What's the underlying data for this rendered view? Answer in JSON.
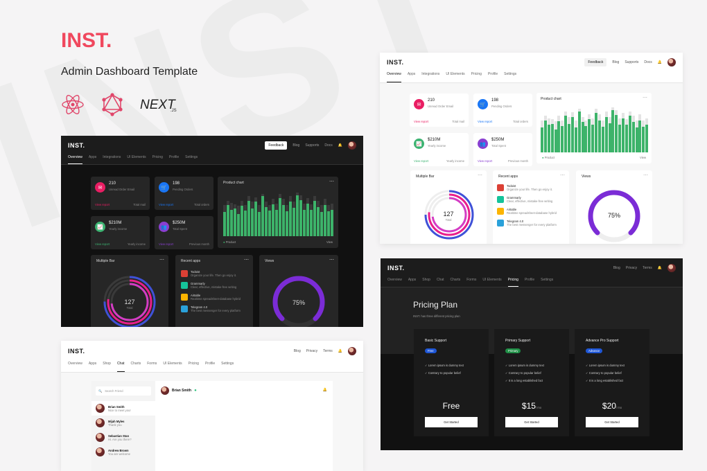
{
  "brand": "INST.",
  "subtitle": "Admin Dashboard Template",
  "tech": [
    "react-icon",
    "graphql-icon",
    "next-js-logo"
  ],
  "dash": {
    "logo": "INST.",
    "feedback": "Feedback",
    "links": [
      "Blog",
      "Supports",
      "Docs"
    ],
    "badge": "11",
    "tabs": [
      "Overview",
      "Apps",
      "Integrations",
      "UI Elements",
      "Pricing",
      "Profile",
      "Settings"
    ],
    "stats": [
      {
        "value": "210",
        "label": "Unread Order Email",
        "link": "View report",
        "right": "Total mail",
        "color": "#e91e63",
        "icon": "✉"
      },
      {
        "value": "198",
        "label": "Pending Orders",
        "link": "View report",
        "right": "Total orders",
        "color": "#1976f5",
        "icon": "🛒"
      },
      {
        "value": "$210M",
        "label": "Yearly income",
        "link": "View report",
        "right": "Yearly income",
        "color": "#3cb371",
        "icon": "📈"
      },
      {
        "value": "$250M",
        "label": "Total Spent",
        "link": "View report",
        "right": "Previous month",
        "color": "#8a3fd1",
        "icon": "👥"
      }
    ],
    "chart_title": "Product chart",
    "chart_legend": "Product",
    "chart_view": "View",
    "multi_title": "Multiple Bar",
    "multi_value": "127",
    "multi_label": "Total",
    "recent_title": "Recent apps",
    "apps": [
      {
        "name": "Todoist",
        "desc": "Organize your life. Then go enjoy it.",
        "color": "#db4035"
      },
      {
        "name": "Grammarly",
        "desc": "Clear, effective, mistake-free writing",
        "color": "#15c39a"
      },
      {
        "name": "Airtable",
        "desc": "Realtime spreadsheet-database hybrid",
        "color": "#fcb400"
      },
      {
        "name": "Telegram 4.0",
        "desc": "The best messenger for every platform",
        "color": "#2aa1da"
      }
    ],
    "views_title": "Views",
    "views_value": "75%"
  },
  "chat": {
    "logo": "INST.",
    "links": [
      "Blog",
      "Privacy",
      "Terms"
    ],
    "badge": "11",
    "tabs": [
      "Overview",
      "Apps",
      "Shop",
      "Chat",
      "Charts",
      "Forms",
      "UI Elements",
      "Pricing",
      "Profile",
      "Settings"
    ],
    "search_placeholder": "Search Friend",
    "header_name": "Brian Smith",
    "contacts": [
      {
        "name": "Brian Smith",
        "msg": "Nice to meet you!"
      },
      {
        "name": "Mijah Myles",
        "msg": "Thank you"
      },
      {
        "name": "Sebastian Stan",
        "msg": "Hi. Are you there?"
      },
      {
        "name": "Andrew Brown",
        "msg": "You are welcome"
      }
    ]
  },
  "pricing": {
    "logo": "INST.",
    "links": [
      "Blog",
      "Privacy",
      "Terms"
    ],
    "badge": "11",
    "tabs": [
      "Overview",
      "Apps",
      "Shop",
      "Chat",
      "Charts",
      "Forms",
      "UI Elements",
      "Pricing",
      "Profile",
      "Settings"
    ],
    "title": "Pricing Plan",
    "subtitle": "INST. has three different pricing plan",
    "plans": [
      {
        "name": "Basic Support",
        "tag": "Free",
        "tag_color": "#1e56d6",
        "features": [
          "Lorem ipsum is dummy text",
          "Contrary to popular belief"
        ],
        "price": "Free",
        "per": "",
        "cta": "Get Started"
      },
      {
        "name": "Primary Support",
        "tag": "Primary",
        "tag_color": "#1f8f46",
        "features": [
          "Lorem ipsum is dummy text",
          "Contrary to popular belief",
          "It is a long established fact"
        ],
        "price": "$15",
        "per": "/ mo",
        "cta": "Get Started"
      },
      {
        "name": "Advance Pro Support",
        "tag": "Advance",
        "tag_color": "#1e56d6",
        "features": [
          "Lorem ipsum is dummy text",
          "Contrary to popular belief",
          "It is a long established fact"
        ],
        "price": "$20",
        "per": "/ mo",
        "cta": "Get Started"
      }
    ]
  },
  "chart_data": {
    "type": "bar",
    "title": "Product chart",
    "series": [
      {
        "name": "Product",
        "values": [
          0.55,
          0.7,
          0.6,
          0.62,
          0.5,
          0.68,
          0.58,
          0.8,
          0.62,
          0.78,
          0.55,
          0.9,
          0.66,
          0.58,
          0.72,
          0.6,
          0.86,
          0.7,
          0.56,
          0.78,
          0.64,
          0.92,
          0.82,
          0.6,
          0.74,
          0.6,
          0.8,
          0.66,
          0.54,
          0.7,
          0.56,
          0.6
        ]
      }
    ],
    "background_values": [
      0.7,
      0.8,
      0.75,
      0.72,
      0.68,
      0.8,
      0.7,
      0.9,
      0.78,
      0.88,
      0.7,
      0.96,
      0.78,
      0.7,
      0.84,
      0.74,
      0.95,
      0.84,
      0.7,
      0.9,
      0.78,
      0.98,
      0.92,
      0.74,
      0.86,
      0.72,
      0.9,
      0.8,
      0.7,
      0.84,
      0.7,
      0.74
    ]
  }
}
